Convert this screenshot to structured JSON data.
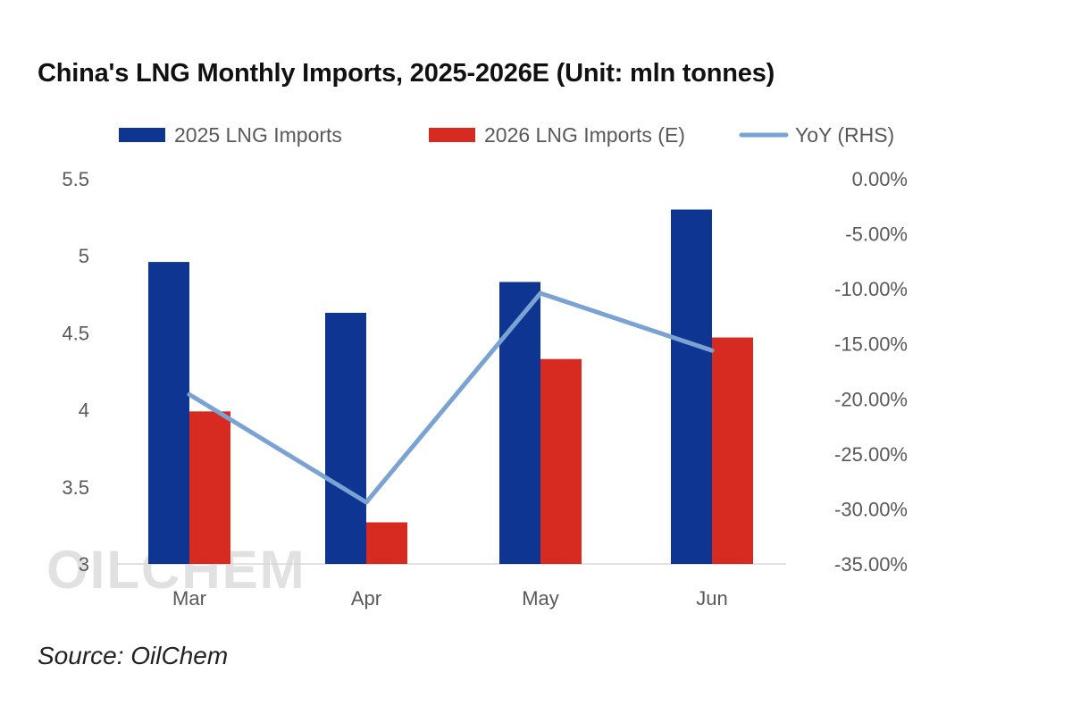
{
  "title": "China's LNG Monthly Imports, 2025-2026E (Unit: mln tonnes)",
  "source": "Source: OilChem",
  "watermark": "OILCHEM",
  "colors": {
    "series_2025": "#0e3591",
    "series_2026": "#d72b22",
    "yoy_line": "#7aa3d4",
    "axis_text": "#595959",
    "baseline": "#d9d9d9",
    "watermark": "#c8c8c8"
  },
  "chart_data": {
    "type": "bar",
    "categories": [
      "Mar",
      "Apr",
      "May",
      "Jun"
    ],
    "series": [
      {
        "name": "2025 LNG Imports",
        "type": "bar",
        "axis": "left",
        "color": "#0e3591",
        "values": [
          4.96,
          4.63,
          4.83,
          5.3
        ]
      },
      {
        "name": "2026 LNG Imports (E)",
        "type": "bar",
        "axis": "left",
        "color": "#d72b22",
        "values": [
          3.99,
          3.27,
          4.33,
          4.47
        ]
      },
      {
        "name": "YoY (RHS)",
        "type": "line",
        "axis": "right",
        "color": "#7aa3d4",
        "values": [
          -19.6,
          -29.4,
          -10.4,
          -15.6
        ]
      }
    ],
    "ylim": [
      3,
      5.5
    ],
    "yticks": [
      "3",
      "3.5",
      "4",
      "4.5",
      "5",
      "5.5"
    ],
    "y2lim": [
      -35,
      0
    ],
    "y2ticks": [
      "0.00%",
      "-5.00%",
      "-10.00%",
      "-15.00%",
      "-20.00%",
      "-25.00%",
      "-30.00%",
      "-35.00%"
    ],
    "xlabel": "",
    "ylabel": "",
    "grid": false,
    "legend_position": "top"
  }
}
